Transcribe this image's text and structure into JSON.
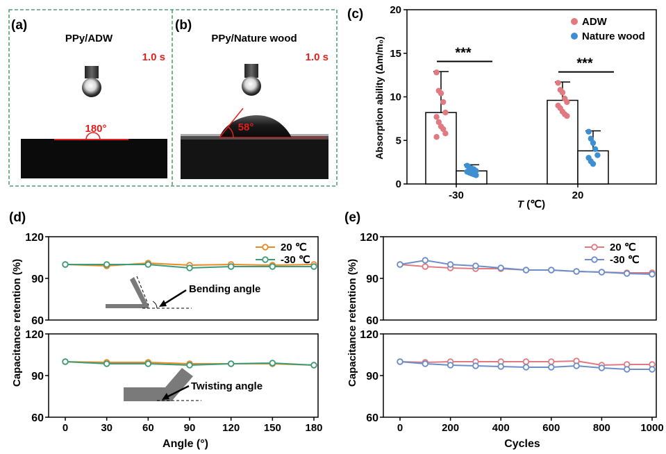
{
  "colors": {
    "red_annot": "#e0201b",
    "adw": "#e07a80",
    "wood": "#3d8fd1",
    "c20": "#e88a25",
    "cm30": "#3d9b78",
    "e20": "#e07a80",
    "em30": "#6b8ec9",
    "frame_dash": "#2e8b57"
  },
  "panels": {
    "a": {
      "label": "(a)",
      "title": "PPy/ADW",
      "time": "1.0 s",
      "angle": "180°"
    },
    "b": {
      "label": "(b)",
      "title": "PPy/Nature wood",
      "time": "1.0 s",
      "angle": "58°"
    },
    "c": {
      "label": "(c)"
    },
    "d": {
      "label": "(d)",
      "inset_top": "Bending angle",
      "inset_bottom": "Twisting angle"
    },
    "e": {
      "label": "(e)"
    }
  },
  "chart_data": [
    {
      "id": "c",
      "type": "bar",
      "categories": [
        "-30",
        "20"
      ],
      "xlabel": "T (℃)",
      "ylabel": "Absorption ability (Δm/m₀)",
      "ylim": [
        0,
        20
      ],
      "yticks": [
        "0",
        "5",
        "10",
        "15",
        "20"
      ],
      "significance": [
        "***",
        "***"
      ],
      "legend": "top-right",
      "series": [
        {
          "name": "ADW",
          "values": [
            8.2,
            9.6
          ],
          "err": [
            4.7,
            2.1
          ],
          "points": [
            [
              12.8,
              10.7,
              10.4,
              9.4,
              8.2,
              7.7,
              7.1,
              6.6,
              6.3,
              5.8,
              5.4
            ],
            [
              11.6,
              10.8,
              10.5,
              9.8,
              9.4,
              9.0,
              8.7,
              8.3,
              8.0,
              7.8
            ]
          ]
        },
        {
          "name": "Nature wood",
          "values": [
            1.5,
            3.8
          ],
          "err": [
            0.7,
            2.3
          ],
          "points": [
            [
              2.1,
              1.9,
              1.8,
              1.7,
              1.5,
              1.4,
              1.3,
              1.2,
              1.1,
              1.0
            ],
            [
              6.0,
              5.2,
              4.7,
              4.0,
              3.3,
              3.0,
              2.6,
              2.3
            ]
          ]
        }
      ]
    },
    {
      "id": "d",
      "type": "line",
      "x": [
        0,
        30,
        60,
        90,
        120,
        150,
        180
      ],
      "xticks": [
        "0",
        "30",
        "60",
        "90",
        "120",
        "150",
        "180"
      ],
      "xlabel": "Angle (°)",
      "ylabel": "Capacitance retention (%)",
      "ylim": [
        60,
        120
      ],
      "yticks": [
        "60",
        "90",
        "120"
      ],
      "legend": "top-right",
      "subplots": [
        {
          "series": [
            {
              "name": "20 ℃",
              "values": [
                100,
                99,
                101,
                99.5,
                100,
                99.5,
                100
              ]
            },
            {
              "name": "-30 ℃",
              "values": [
                100,
                100,
                100,
                97.5,
                98.5,
                98.5,
                98.5
              ]
            }
          ]
        },
        {
          "series": [
            {
              "name": "20 ℃",
              "values": [
                100,
                99.5,
                99.5,
                98.5,
                98.5,
                98.5,
                97.5
              ]
            },
            {
              "name": "-30 ℃",
              "values": [
                100,
                98.5,
                98.5,
                97.5,
                98.5,
                99,
                97.5
              ]
            }
          ]
        }
      ]
    },
    {
      "id": "e",
      "type": "line",
      "x": [
        0,
        100,
        200,
        300,
        400,
        500,
        600,
        700,
        800,
        900,
        1000
      ],
      "xticks": [
        "0",
        "200",
        "400",
        "600",
        "800",
        "1000"
      ],
      "xlabel": "Cycles",
      "ylabel": "Capacitance retention (%)",
      "ylim": [
        60,
        120
      ],
      "yticks": [
        "60",
        "90",
        "120"
      ],
      "legend": "top-right",
      "subplots": [
        {
          "series": [
            {
              "name": "20 ℃",
              "values": [
                100,
                98.5,
                97.5,
                97,
                97,
                96,
                96,
                95,
                94.5,
                94,
                94
              ]
            },
            {
              "name": "-30 ℃",
              "values": [
                100,
                103,
                100,
                99,
                97.5,
                96,
                96,
                95,
                94.5,
                93.5,
                93
              ]
            }
          ]
        },
        {
          "series": [
            {
              "name": "20 ℃",
              "values": [
                100,
                99.5,
                100,
                100,
                100,
                100,
                100,
                100.5,
                97.5,
                98,
                98
              ]
            },
            {
              "name": "-30 ℃",
              "values": [
                100,
                98.5,
                97.5,
                97,
                96.5,
                96,
                96,
                97,
                95.5,
                94.5,
                94.5
              ]
            }
          ]
        }
      ]
    }
  ]
}
